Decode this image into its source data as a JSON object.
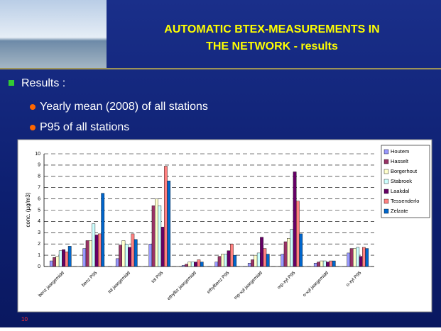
{
  "slide": {
    "title_lines": [
      "AUTOMATIC BTEX-MEASUREMENTS IN",
      "THE NETWORK - results"
    ],
    "bullet": "Results :",
    "sub_bullets": [
      "Yearly mean (2008) of all stations",
      "P95 of all stations"
    ],
    "page_number": "10"
  },
  "chart_data": {
    "type": "bar",
    "y_label": "conc. (µg/m3)",
    "categories": [
      "benz jaargemidd",
      "benz P95",
      "tol jaargemidd",
      "tol P95",
      "ethylbz jaargemidd",
      "ethylbenz P95",
      "mp-xyl jaargemidd",
      "mp-xyl P95",
      "o-xyl jaargemidd",
      "o-xyl P95"
    ],
    "series": [
      {
        "name": "Houtem",
        "color": "#9999ff",
        "values": [
          0.5,
          1.6,
          0.7,
          2.0,
          0.1,
          0.4,
          0.3,
          1.1,
          0.3,
          1.2
        ]
      },
      {
        "name": "Hasselt",
        "color": "#993366",
        "values": [
          0.8,
          2.3,
          1.9,
          5.4,
          0.2,
          0.9,
          0.6,
          2.2,
          0.4,
          1.6
        ]
      },
      {
        "name": "Borgerhout",
        "color": "#ffffcc",
        "values": [
          0.9,
          2.3,
          2.3,
          6.0,
          0.4,
          1.1,
          1.0,
          2.5,
          0.5,
          1.6
        ]
      },
      {
        "name": "Stabroek",
        "color": "#ccffff",
        "values": [
          1.4,
          3.8,
          2.0,
          5.4,
          0.4,
          1.1,
          1.2,
          3.3,
          0.5,
          1.7
        ]
      },
      {
        "name": "Laakdal",
        "color": "#660066",
        "values": [
          1.5,
          2.8,
          1.7,
          3.5,
          0.4,
          1.4,
          2.6,
          8.4,
          0.4,
          0.9
        ]
      },
      {
        "name": "Tessenderlo",
        "color": "#ff8080",
        "values": [
          1.3,
          2.9,
          2.9,
          8.9,
          0.6,
          2.0,
          1.6,
          5.8,
          0.5,
          1.7
        ]
      },
      {
        "name": "Zelzate",
        "color": "#0066cc",
        "values": [
          1.8,
          6.5,
          2.4,
          7.6,
          0.4,
          1.0,
          1.1,
          2.9,
          0.5,
          1.6
        ]
      }
    ],
    "ylim": [
      0,
      10
    ],
    "yticks": [
      0,
      1,
      2,
      3,
      4,
      5,
      6,
      7,
      8,
      9,
      10
    ],
    "grid": true,
    "legend": "top-right"
  }
}
